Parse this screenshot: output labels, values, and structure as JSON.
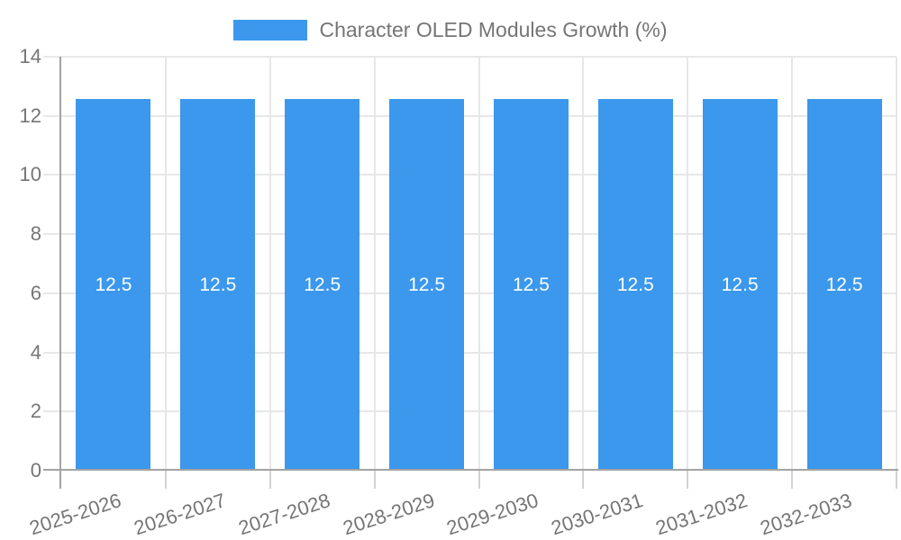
{
  "chart_data": {
    "type": "bar",
    "title": "Character OLED Modules Growth (%)",
    "categories": [
      "2025-2026",
      "2026-2027",
      "2027-2028",
      "2028-2029",
      "2029-2030",
      "2030-2031",
      "2031-2032",
      "2032-2033"
    ],
    "values": [
      12.5,
      12.5,
      12.5,
      12.5,
      12.5,
      12.5,
      12.5,
      12.5
    ],
    "bar_labels": [
      "12.5",
      "12.5",
      "12.5",
      "12.5",
      "12.5",
      "12.5",
      "12.5",
      "12.5"
    ],
    "xlabel": "",
    "ylabel": "",
    "ylim": [
      0,
      14
    ],
    "yticks": [
      0,
      2,
      4,
      6,
      8,
      10,
      12,
      14
    ],
    "grid": true,
    "legend_position": "top",
    "colors": {
      "bar": "#3b98ec",
      "bar_label": "#ffffff",
      "grid": "#e7e7e7",
      "axis": "#a3a3a3",
      "tick": "#d2d2d2",
      "text": "#757575",
      "background": "#ffffff"
    }
  }
}
